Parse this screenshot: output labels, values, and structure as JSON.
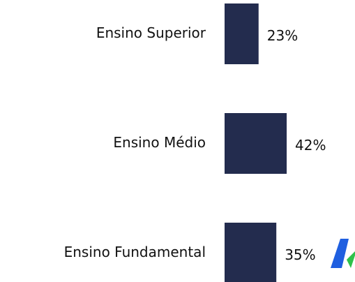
{
  "chart_data": {
    "type": "bar",
    "orientation": "horizontal",
    "categories": [
      "Ensino Superior",
      "Ensino Médio",
      "Ensino Fundamental"
    ],
    "values": [
      23,
      42,
      35
    ],
    "value_labels": [
      "23%",
      "42%",
      "35%"
    ],
    "color": "#232c4e"
  }
}
